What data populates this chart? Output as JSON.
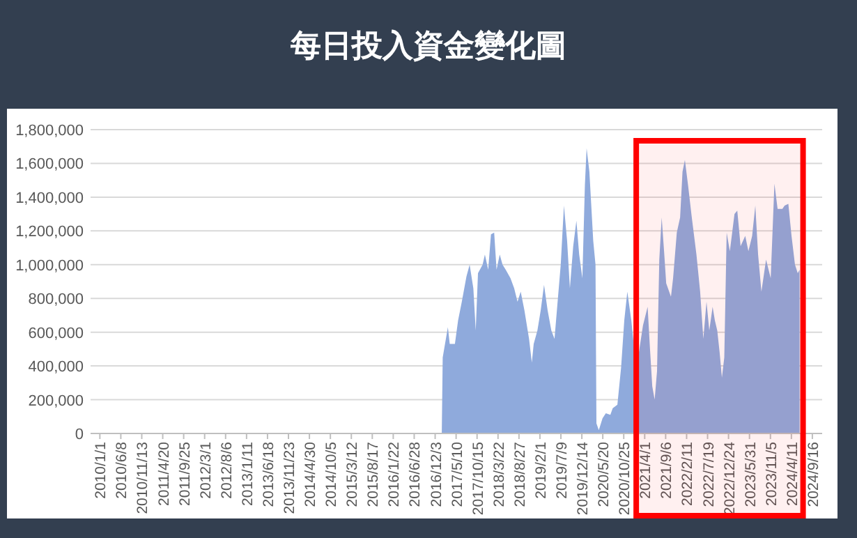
{
  "chart_data": {
    "type": "area",
    "title": "每日投入資金變化圖",
    "color": "#8faadc",
    "grid": "y",
    "xlim": [
      "2009-10-23",
      "2024-11-29"
    ],
    "ylim": [
      0,
      1800000
    ],
    "yticks": [
      0,
      {
        "value": 200000,
        "label": "200,000"
      },
      {
        "value": 400000,
        "label": "400,000"
      },
      {
        "value": 600000,
        "label": "600,000"
      },
      {
        "value": 800000,
        "label": "800,000"
      },
      {
        "value": 1000000,
        "label": "1,000,000"
      },
      {
        "value": 1200000,
        "label": "1,200,000"
      },
      {
        "value": 1400000,
        "label": "1,400,000"
      },
      {
        "value": 1600000,
        "label": "1,600,000"
      },
      {
        "value": 1800000,
        "label": "1,800,000"
      }
    ],
    "xticks": [
      {
        "value": "2010-01-01",
        "label": "2010/1/1"
      },
      {
        "value": "2010-06-08",
        "label": "2010/6/8"
      },
      {
        "value": "2010-11-13",
        "label": "2010/11/13"
      },
      {
        "value": "2011-04-20",
        "label": "2011/4/20"
      },
      {
        "value": "2011-09-25",
        "label": "2011/9/25"
      },
      {
        "value": "2012-03-01",
        "label": "2012/3/1"
      },
      {
        "value": "2012-08-06",
        "label": "2012/8/6"
      },
      {
        "value": "2013-01-11",
        "label": "2013/1/11"
      },
      {
        "value": "2013-06-18",
        "label": "2013/6/18"
      },
      {
        "value": "2013-11-23",
        "label": "2013/11/23"
      },
      {
        "value": "2014-04-30",
        "label": "2014/4/30"
      },
      {
        "value": "2014-10-05",
        "label": "2014/10/5"
      },
      {
        "value": "2015-03-12",
        "label": "2015/3/12"
      },
      {
        "value": "2015-08-17",
        "label": "2015/8/17"
      },
      {
        "value": "2016-01-22",
        "label": "2016/1/22"
      },
      {
        "value": "2016-06-28",
        "label": "2016/6/28"
      },
      {
        "value": "2016-12-03",
        "label": "2016/12/3"
      },
      {
        "value": "2017-05-10",
        "label": "2017/5/10"
      },
      {
        "value": "2017-10-15",
        "label": "2017/10/15"
      },
      {
        "value": "2018-03-22",
        "label": "2018/3/22"
      },
      {
        "value": "2018-08-27",
        "label": "2018/8/27"
      },
      {
        "value": "2019-02-01",
        "label": "2019/2/1"
      },
      {
        "value": "2019-07-09",
        "label": "2019/7/9"
      },
      {
        "value": "2019-12-14",
        "label": "2019/12/14"
      },
      {
        "value": "2020-05-20",
        "label": "2020/5/20"
      },
      {
        "value": "2020-10-25",
        "label": "2020/10/25"
      },
      {
        "value": "2021-04-01",
        "label": "2021/4/1"
      },
      {
        "value": "2021-09-06",
        "label": "2021/9/6"
      },
      {
        "value": "2022-02-11",
        "label": "2022/2/11"
      },
      {
        "value": "2022-07-19",
        "label": "2022/7/19"
      },
      {
        "value": "2022-12-24",
        "label": "2022/12/24"
      },
      {
        "value": "2023-05-31",
        "label": "2023/5/31"
      },
      {
        "value": "2023-11-05",
        "label": "2023/11/5"
      },
      {
        "value": "2024-04-11",
        "label": "2024/4/11"
      },
      {
        "value": "2024-09-16",
        "label": "2024/9/16"
      }
    ],
    "bands": [
      {
        "axis": "x",
        "from": "2021-01-27",
        "to": "2024-07-08",
        "color": "#ff0000"
      }
    ],
    "x": [
      "2017-01-15",
      "2017-01-22",
      "2017-01-29",
      "2017-03-09",
      "2017-03-23",
      "2017-05-01",
      "2017-05-25",
      "2017-06-22",
      "2017-07-27",
      "2017-08-20",
      "2017-09-17",
      "2017-10-05",
      "2017-10-22",
      "2017-11-26",
      "2017-12-13",
      "2018-01-07",
      "2018-01-28",
      "2018-02-21",
      "2018-03-11",
      "2018-04-04",
      "2018-04-25",
      "2018-05-19",
      "2018-06-24",
      "2018-07-22",
      "2018-08-16",
      "2018-09-09",
      "2018-10-07",
      "2018-11-11",
      "2018-12-02",
      "2018-12-16",
      "2019-01-13",
      "2019-02-07",
      "2019-03-04",
      "2019-03-31",
      "2019-04-28",
      "2019-05-22",
      "2019-06-09",
      "2019-07-08",
      "2019-08-01",
      "2019-08-25",
      "2019-09-15",
      "2019-10-10",
      "2019-11-03",
      "2019-11-24",
      "2019-12-18",
      "2020-01-06",
      "2020-01-19",
      "2020-02-09",
      "2020-03-09",
      "2020-03-26",
      "2020-04-02",
      "2020-04-20",
      "2020-05-18",
      "2020-06-12",
      "2020-07-16",
      "2020-08-03",
      "2020-09-07",
      "2020-10-05",
      "2020-10-29",
      "2020-11-21",
      "2020-12-21",
      "2021-01-08",
      "2021-01-26",
      "2021-03-19",
      "2021-04-23",
      "2021-05-11",
      "2021-05-28",
      "2021-06-15",
      "2021-07-03",
      "2021-07-20",
      "2021-08-07",
      "2021-08-25",
      "2021-09-10",
      "2021-10-16",
      "2021-11-01",
      "2021-11-29",
      "2021-12-24",
      "2022-01-11",
      "2022-01-29",
      "2022-02-22",
      "2022-03-22",
      "2022-04-26",
      "2022-05-24",
      "2022-06-17",
      "2022-07-11",
      "2022-08-01",
      "2022-08-26",
      "2022-09-12",
      "2022-09-30",
      "2022-10-18",
      "2022-11-04",
      "2022-11-22",
      "2022-12-10",
      "2023-01-03",
      "2023-02-07",
      "2023-02-28",
      "2023-03-25",
      "2023-04-29",
      "2023-05-23",
      "2023-06-20",
      "2023-07-14",
      "2023-08-04",
      "2023-08-29",
      "2023-10-03",
      "2023-11-07",
      "2023-12-05",
      "2023-12-29",
      "2024-02-03",
      "2024-02-20",
      "2024-03-19",
      "2024-04-12",
      "2024-05-08",
      "2024-05-29",
      "2024-06-12"
    ],
    "values": [
      0,
      0,
      450000,
      630000,
      530000,
      530000,
      670000,
      780000,
      930000,
      1000000,
      860000,
      610000,
      950000,
      1000000,
      1060000,
      970000,
      1180000,
      1190000,
      970000,
      1060000,
      1000000,
      970000,
      920000,
      860000,
      780000,
      840000,
      730000,
      560000,
      420000,
      530000,
      610000,
      730000,
      880000,
      730000,
      610000,
      560000,
      730000,
      1000000,
      1350000,
      1140000,
      860000,
      1110000,
      1260000,
      1060000,
      920000,
      1470000,
      1690000,
      1550000,
      1140000,
      1000000,
      60000,
      20000,
      90000,
      120000,
      110000,
      150000,
      170000,
      390000,
      670000,
      840000,
      670000,
      530000,
      370000,
      640000,
      750000,
      500000,
      280000,
      200000,
      370000,
      1030000,
      1280000,
      1080000,
      890000,
      810000,
      920000,
      1190000,
      1280000,
      1550000,
      1620000,
      1470000,
      1280000,
      1060000,
      840000,
      560000,
      780000,
      610000,
      750000,
      670000,
      610000,
      480000,
      330000,
      450000,
      1190000,
      1080000,
      1300000,
      1320000,
      1110000,
      1170000,
      1080000,
      1170000,
      1350000,
      1060000,
      840000,
      1030000,
      920000,
      1480000,
      1330000,
      1330000,
      1350000,
      1360000,
      1170000,
      1000000,
      950000,
      970000
    ]
  }
}
